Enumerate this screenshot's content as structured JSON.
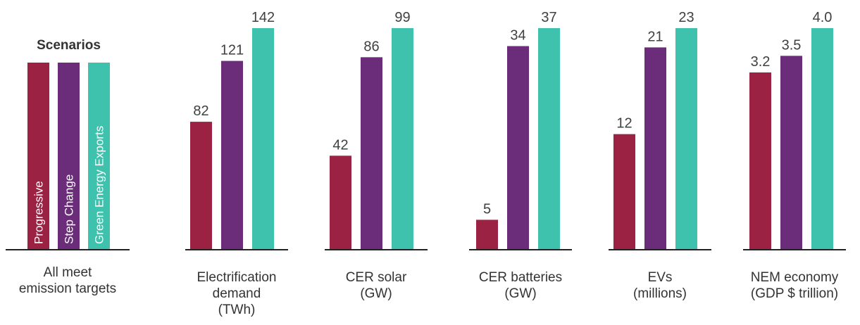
{
  "colors": {
    "progressive": "#9b2242",
    "step_change": "#6b2d7a",
    "green_energy_exports": "#3fc2ad"
  },
  "legend": {
    "title": "Scenarios",
    "caption": [
      "All meet",
      "emission targets"
    ]
  },
  "chart_data": [
    {
      "type": "bar",
      "caption": [
        "Electrification",
        "demand",
        "(TWh)"
      ],
      "series": [
        {
          "name": "Progressive",
          "value": 82,
          "label": "82"
        },
        {
          "name": "Step Change",
          "value": 121,
          "label": "121"
        },
        {
          "name": "Green Energy Exports",
          "value": 142,
          "label": "142"
        }
      ],
      "ylim": [
        0,
        142
      ]
    },
    {
      "type": "bar",
      "caption": [
        "CER solar",
        "(GW)"
      ],
      "series": [
        {
          "name": "Progressive",
          "value": 42,
          "label": "42"
        },
        {
          "name": "Step Change",
          "value": 86,
          "label": "86"
        },
        {
          "name": "Green Energy Exports",
          "value": 99,
          "label": "99"
        }
      ],
      "ylim": [
        0,
        99
      ]
    },
    {
      "type": "bar",
      "caption": [
        "CER batteries",
        "(GW)"
      ],
      "series": [
        {
          "name": "Progressive",
          "value": 5,
          "label": "5"
        },
        {
          "name": "Step Change",
          "value": 34,
          "label": "34"
        },
        {
          "name": "Green Energy Exports",
          "value": 37,
          "label": "37"
        }
      ],
      "ylim": [
        0,
        37
      ]
    },
    {
      "type": "bar",
      "caption": [
        "EVs",
        "(millions)"
      ],
      "series": [
        {
          "name": "Progressive",
          "value": 12,
          "label": "12"
        },
        {
          "name": "Step Change",
          "value": 21,
          "label": "21"
        },
        {
          "name": "Green Energy Exports",
          "value": 23,
          "label": "23"
        }
      ],
      "ylim": [
        0,
        23
      ]
    },
    {
      "type": "bar",
      "caption": [
        "NEM economy",
        "(GDP $ trillion)"
      ],
      "series": [
        {
          "name": "Progressive",
          "value": 3.2,
          "label": "3.2"
        },
        {
          "name": "Step Change",
          "value": 3.5,
          "label": "3.5"
        },
        {
          "name": "Green Energy Exports",
          "value": 4.0,
          "label": "4.0"
        }
      ],
      "ylim": [
        0,
        4.0
      ]
    }
  ]
}
